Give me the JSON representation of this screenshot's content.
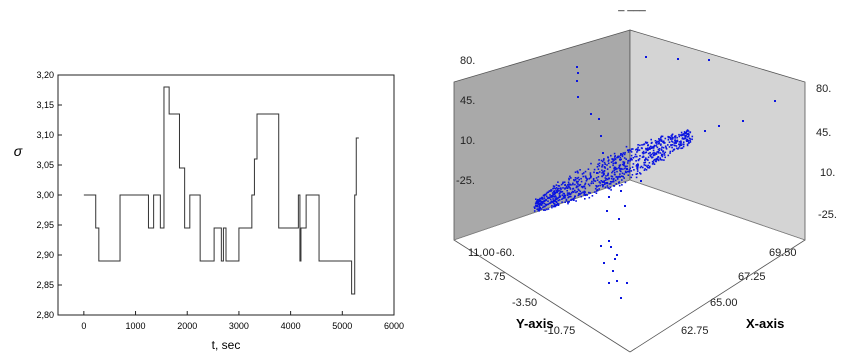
{
  "chart_data": [
    {
      "type": "line",
      "step": true,
      "xlabel": "t, sec",
      "ylabel": "σ",
      "xlim": [
        -500,
        6000
      ],
      "ylim": [
        2.8,
        3.2
      ],
      "xticks": [
        "0",
        "1000",
        "2000",
        "3000",
        "4000",
        "5000",
        "6000"
      ],
      "xtick_values": [
        0,
        1000,
        2000,
        3000,
        4000,
        5000,
        6000
      ],
      "yticks": [
        "2,80",
        "2,85",
        "2,90",
        "2,95",
        "3,00",
        "3,05",
        "3,10",
        "3,15",
        "3,20"
      ],
      "ytick_values": [
        2.8,
        2.85,
        2.9,
        2.95,
        3.0,
        3.05,
        3.1,
        3.15,
        3.2
      ],
      "series": [
        {
          "x": [
            0,
            230,
            290,
            700,
            1250,
            1350,
            1480,
            1550,
            1650,
            1850,
            1950,
            2050,
            2250,
            2520,
            2660,
            2700,
            2750,
            3000,
            3050,
            3250,
            3300,
            3320,
            3350,
            3770,
            3900,
            4150,
            4180,
            4200,
            4300,
            4550,
            4920,
            5180,
            5240,
            5270,
            5320
          ],
          "y": [
            3.0,
            2.945,
            2.89,
            3.0,
            2.945,
            3.0,
            2.945,
            3.18,
            3.135,
            3.045,
            2.945,
            3.0,
            2.89,
            2.945,
            2.89,
            2.945,
            2.89,
            2.945,
            2.945,
            3.0,
            3.06,
            3.06,
            3.135,
            2.945,
            2.945,
            3.0,
            2.89,
            2.945,
            3.0,
            2.89,
            2.89,
            2.835,
            3.0,
            3.095,
            3.095
          ]
        }
      ],
      "color": "#333333",
      "grid": false
    },
    {
      "type": "scatter",
      "three_d": true,
      "title": "_ ___",
      "xlabel": "X-axis",
      "ylabel": "Y-axis",
      "zlabel": "",
      "xticks": [
        "62.75",
        "65.00",
        "67.25",
        "69.50"
      ],
      "yticks": [
        "11.00",
        "3.75",
        "-3.50",
        "-10.75"
      ],
      "zticks_left": [
        "80.",
        "45.",
        "10.",
        "-25."
      ],
      "zticks_right": [
        "80.",
        "45.",
        "10.",
        "-25."
      ],
      "corner_label": "-60.",
      "color": "#0a14e0",
      "wall_colors": [
        "#a9a9a9",
        "#d4d4d4"
      ]
    }
  ]
}
